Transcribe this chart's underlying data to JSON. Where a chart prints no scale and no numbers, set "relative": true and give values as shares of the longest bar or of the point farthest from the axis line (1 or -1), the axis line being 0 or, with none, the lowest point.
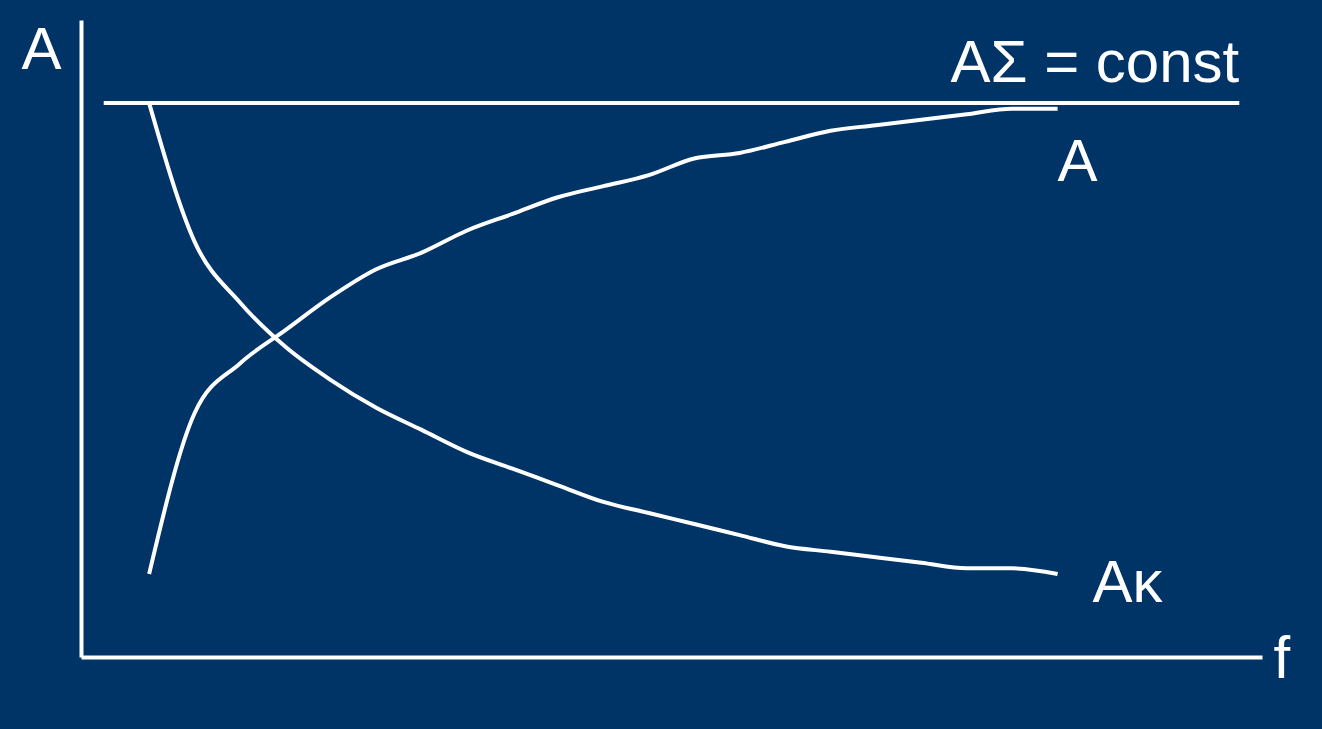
{
  "chart_data": {
    "type": "line",
    "relative": true,
    "xlabel": "f",
    "ylabel": "A",
    "grid": false,
    "marker": "none",
    "line_style": "solid",
    "categories": [
      null,
      null,
      null,
      null,
      null,
      null,
      null,
      null,
      null,
      null,
      null,
      null,
      null,
      null,
      null,
      null,
      null,
      null,
      null,
      null,
      null
    ],
    "series": [
      {
        "name": "A",
        "color": "#ffffff",
        "values": [
          0.15,
          0.44,
          0.53,
          0.59,
          0.65,
          0.7,
          0.73,
          0.77,
          0.8,
          0.83,
          0.85,
          0.87,
          0.9,
          0.91,
          0.93,
          0.95,
          0.96,
          0.97,
          0.98,
          0.99,
          0.99
        ]
      },
      {
        "name": "Aκ",
        "color": "#ffffff",
        "values": [
          1.0,
          0.75,
          0.64,
          0.56,
          0.5,
          0.45,
          0.41,
          0.37,
          0.34,
          0.31,
          0.28,
          0.26,
          0.24,
          0.22,
          0.2,
          0.19,
          0.18,
          0.17,
          0.16,
          0.16,
          0.15
        ]
      }
    ],
    "ref_lines": [
      {
        "axis": "y",
        "value": 1.0,
        "label": "AΣ = const",
        "color": "#ffffff",
        "line_style": "solid"
      }
    ]
  }
}
